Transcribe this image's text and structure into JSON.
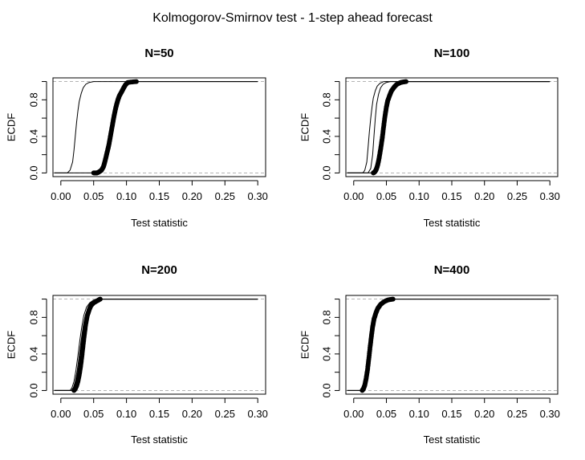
{
  "figure": {
    "title": "Kolmogorov-Smirnov test - 1-step ahead forecast"
  },
  "chart_data": [
    {
      "type": "line",
      "title": "N=50",
      "xlabel": "Test statistic",
      "ylabel": "ECDF",
      "xlim": [
        0.0,
        0.3
      ],
      "ylim": [
        0.0,
        1.0
      ],
      "xticks": [
        "0.00",
        "0.05",
        "0.10",
        "0.15",
        "0.20",
        "0.25",
        "0.30"
      ],
      "yticks": [
        "0.0",
        "0.4",
        "0.8"
      ],
      "reference_lines": [
        0,
        1
      ],
      "series": [
        {
          "style": "line",
          "points": [
            [
              -0.01,
              0
            ],
            [
              0.01,
              0.0
            ],
            [
              0.014,
              0.03
            ],
            [
              0.018,
              0.12
            ],
            [
              0.02,
              0.25
            ],
            [
              0.022,
              0.4
            ],
            [
              0.024,
              0.55
            ],
            [
              0.026,
              0.68
            ],
            [
              0.028,
              0.78
            ],
            [
              0.031,
              0.87
            ],
            [
              0.034,
              0.93
            ],
            [
              0.038,
              0.97
            ],
            [
              0.043,
              0.99
            ],
            [
              0.05,
              1.0
            ],
            [
              0.3,
              1.0
            ]
          ]
        },
        {
          "style": "points",
          "points": [
            [
              -0.01,
              0
            ],
            [
              0.05,
              0
            ],
            [
              0.055,
              0.0
            ],
            [
              0.058,
              0.01
            ],
            [
              0.062,
              0.03
            ],
            [
              0.065,
              0.07
            ],
            [
              0.067,
              0.12
            ],
            [
              0.069,
              0.18
            ],
            [
              0.071,
              0.24
            ],
            [
              0.073,
              0.3
            ],
            [
              0.075,
              0.38
            ],
            [
              0.077,
              0.46
            ],
            [
              0.079,
              0.54
            ],
            [
              0.081,
              0.62
            ],
            [
              0.083,
              0.69
            ],
            [
              0.085,
              0.75
            ],
            [
              0.087,
              0.8
            ],
            [
              0.089,
              0.84
            ],
            [
              0.092,
              0.88
            ],
            [
              0.095,
              0.92
            ],
            [
              0.098,
              0.96
            ],
            [
              0.102,
              0.99
            ],
            [
              0.115,
              1.0
            ],
            [
              0.3,
              1.0
            ]
          ]
        }
      ]
    },
    {
      "type": "line",
      "title": "N=100",
      "xlabel": "Test statistic",
      "ylabel": "ECDF",
      "xlim": [
        0.0,
        0.3
      ],
      "ylim": [
        0.0,
        1.0
      ],
      "xticks": [
        "0.00",
        "0.05",
        "0.10",
        "0.15",
        "0.20",
        "0.25",
        "0.30"
      ],
      "yticks": [
        "0.0",
        "0.4",
        "0.8"
      ],
      "reference_lines": [
        0,
        1
      ],
      "series": [
        {
          "style": "line",
          "points": [
            [
              -0.01,
              0
            ],
            [
              0.014,
              0.0
            ],
            [
              0.017,
              0.03
            ],
            [
              0.02,
              0.12
            ],
            [
              0.022,
              0.28
            ],
            [
              0.024,
              0.45
            ],
            [
              0.026,
              0.6
            ],
            [
              0.028,
              0.72
            ],
            [
              0.03,
              0.82
            ],
            [
              0.033,
              0.9
            ],
            [
              0.036,
              0.95
            ],
            [
              0.04,
              0.98
            ],
            [
              0.046,
              1.0
            ],
            [
              0.3,
              1.0
            ]
          ]
        },
        {
          "style": "line",
          "points": [
            [
              -0.01,
              0
            ],
            [
              0.022,
              0.0
            ],
            [
              0.026,
              0.05
            ],
            [
              0.029,
              0.2
            ],
            [
              0.031,
              0.4
            ],
            [
              0.033,
              0.6
            ],
            [
              0.035,
              0.75
            ],
            [
              0.038,
              0.86
            ],
            [
              0.041,
              0.93
            ],
            [
              0.045,
              0.97
            ],
            [
              0.05,
              0.99
            ],
            [
              0.056,
              1.0
            ],
            [
              0.3,
              1.0
            ]
          ]
        },
        {
          "style": "points",
          "points": [
            [
              -0.01,
              0
            ],
            [
              0.03,
              0.0
            ],
            [
              0.032,
              0.01
            ],
            [
              0.034,
              0.03
            ],
            [
              0.036,
              0.07
            ],
            [
              0.038,
              0.13
            ],
            [
              0.04,
              0.21
            ],
            [
              0.042,
              0.3
            ],
            [
              0.044,
              0.4
            ],
            [
              0.046,
              0.52
            ],
            [
              0.048,
              0.63
            ],
            [
              0.05,
              0.72
            ],
            [
              0.052,
              0.79
            ],
            [
              0.055,
              0.85
            ],
            [
              0.058,
              0.9
            ],
            [
              0.062,
              0.94
            ],
            [
              0.066,
              0.97
            ],
            [
              0.072,
              0.99
            ],
            [
              0.08,
              1.0
            ],
            [
              0.3,
              1.0
            ]
          ]
        }
      ]
    },
    {
      "type": "line",
      "title": "N=200",
      "xlabel": "Test statistic",
      "ylabel": "ECDF",
      "xlim": [
        0.0,
        0.3
      ],
      "ylim": [
        0.0,
        1.0
      ],
      "xticks": [
        "0.00",
        "0.05",
        "0.10",
        "0.15",
        "0.20",
        "0.25",
        "0.30"
      ],
      "yticks": [
        "0.0",
        "0.4",
        "0.8"
      ],
      "reference_lines": [
        0,
        1
      ],
      "series": [
        {
          "style": "line",
          "points": [
            [
              -0.01,
              0
            ],
            [
              0.014,
              0.0
            ],
            [
              0.017,
              0.03
            ],
            [
              0.02,
              0.1
            ],
            [
              0.023,
              0.22
            ],
            [
              0.026,
              0.38
            ],
            [
              0.029,
              0.55
            ],
            [
              0.032,
              0.7
            ],
            [
              0.035,
              0.82
            ],
            [
              0.039,
              0.91
            ],
            [
              0.044,
              0.96
            ],
            [
              0.05,
              0.99
            ],
            [
              0.058,
              1.0
            ],
            [
              0.3,
              1.0
            ]
          ]
        },
        {
          "style": "line",
          "points": [
            [
              -0.01,
              0
            ],
            [
              0.016,
              0.0
            ],
            [
              0.019,
              0.03
            ],
            [
              0.022,
              0.1
            ],
            [
              0.025,
              0.22
            ],
            [
              0.028,
              0.38
            ],
            [
              0.031,
              0.55
            ],
            [
              0.034,
              0.7
            ],
            [
              0.037,
              0.81
            ],
            [
              0.041,
              0.9
            ],
            [
              0.046,
              0.95
            ],
            [
              0.052,
              0.98
            ],
            [
              0.06,
              1.0
            ],
            [
              0.3,
              1.0
            ]
          ]
        },
        {
          "style": "points",
          "points": [
            [
              -0.01,
              0
            ],
            [
              0.02,
              0.0
            ],
            [
              0.022,
              0.02
            ],
            [
              0.024,
              0.05
            ],
            [
              0.026,
              0.1
            ],
            [
              0.028,
              0.17
            ],
            [
              0.03,
              0.26
            ],
            [
              0.032,
              0.37
            ],
            [
              0.034,
              0.5
            ],
            [
              0.036,
              0.62
            ],
            [
              0.038,
              0.73
            ],
            [
              0.04,
              0.81
            ],
            [
              0.043,
              0.88
            ],
            [
              0.046,
              0.93
            ],
            [
              0.05,
              0.96
            ],
            [
              0.055,
              0.98
            ],
            [
              0.06,
              1.0
            ],
            [
              0.3,
              1.0
            ]
          ]
        }
      ]
    },
    {
      "type": "line",
      "title": "N=400",
      "xlabel": "Test statistic",
      "ylabel": "ECDF",
      "xlim": [
        0.0,
        0.3
      ],
      "ylim": [
        0.0,
        1.0
      ],
      "xticks": [
        "0.00",
        "0.05",
        "0.10",
        "0.15",
        "0.20",
        "0.25",
        "0.30"
      ],
      "yticks": [
        "0.0",
        "0.4",
        "0.8"
      ],
      "reference_lines": [
        0,
        1
      ],
      "series": [
        {
          "style": "line",
          "points": [
            [
              -0.01,
              0
            ],
            [
              0.012,
              0.0
            ],
            [
              0.015,
              0.03
            ],
            [
              0.018,
              0.1
            ],
            [
              0.021,
              0.24
            ],
            [
              0.024,
              0.42
            ],
            [
              0.027,
              0.6
            ],
            [
              0.03,
              0.75
            ],
            [
              0.033,
              0.85
            ],
            [
              0.037,
              0.92
            ],
            [
              0.042,
              0.96
            ],
            [
              0.048,
              0.99
            ],
            [
              0.055,
              1.0
            ],
            [
              0.3,
              1.0
            ]
          ]
        },
        {
          "style": "points",
          "points": [
            [
              -0.01,
              0
            ],
            [
              0.013,
              0.0
            ],
            [
              0.015,
              0.02
            ],
            [
              0.017,
              0.06
            ],
            [
              0.019,
              0.13
            ],
            [
              0.021,
              0.22
            ],
            [
              0.023,
              0.34
            ],
            [
              0.025,
              0.47
            ],
            [
              0.027,
              0.59
            ],
            [
              0.029,
              0.7
            ],
            [
              0.031,
              0.78
            ],
            [
              0.034,
              0.85
            ],
            [
              0.037,
              0.9
            ],
            [
              0.041,
              0.94
            ],
            [
              0.046,
              0.97
            ],
            [
              0.052,
              0.99
            ],
            [
              0.06,
              1.0
            ],
            [
              0.3,
              1.0
            ]
          ]
        }
      ]
    }
  ]
}
